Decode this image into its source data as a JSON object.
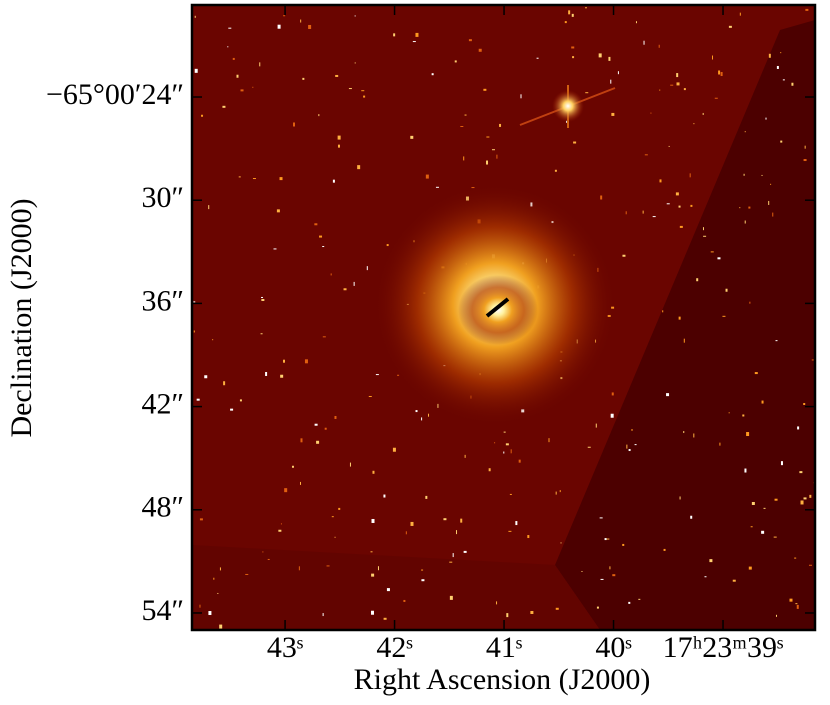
{
  "chart_data": {
    "type": "image",
    "x_label": "Right Ascension (J2000)",
    "y_label": "Declination (J2000)",
    "xlim": [
      43.85,
      38.16
    ],
    "xticks": [
      {
        "value": 43,
        "label": "43ˢ"
      },
      {
        "value": 42,
        "label": "42ˢ"
      },
      {
        "value": 41,
        "label": "41ˢ"
      },
      {
        "value": 40,
        "label": "40ˢ"
      },
      {
        "value": 39,
        "label": "17ʰ23ᵐ39ˢ"
      }
    ],
    "ylim": [
      54.99,
      18.65
    ],
    "yticks": [
      {
        "value": 24,
        "label": "−65°00′24″"
      },
      {
        "value": 30,
        "label": "30″"
      },
      {
        "value": 36,
        "label": "36″"
      },
      {
        "value": 42,
        "label": "42″"
      },
      {
        "value": 48,
        "label": "48″"
      },
      {
        "value": 54,
        "label": "54″"
      }
    ]
  }
}
